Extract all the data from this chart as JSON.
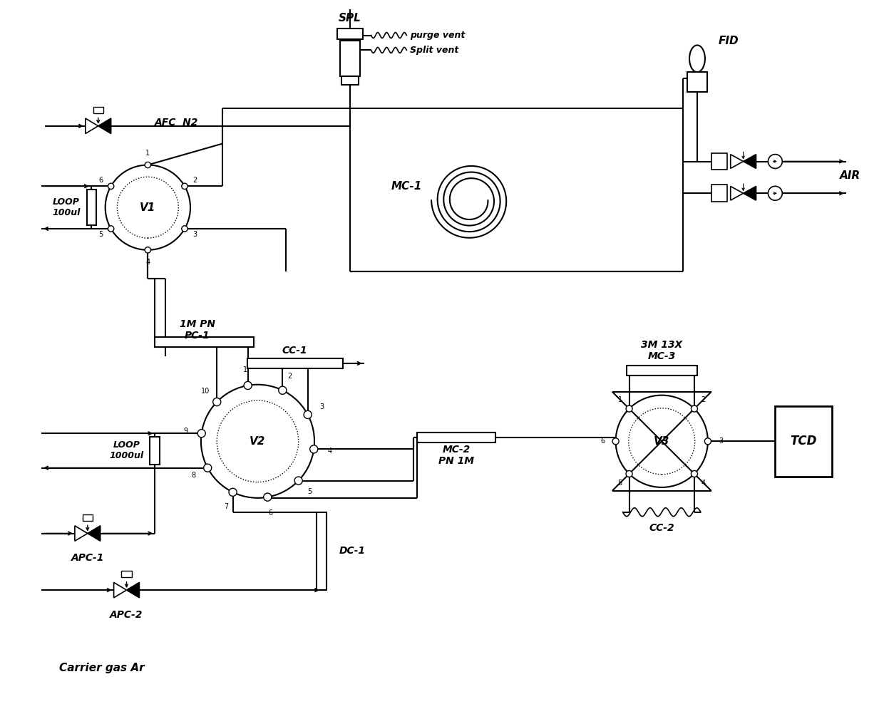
{
  "bg_color": "#ffffff",
  "fig_width": 12.4,
  "fig_height": 9.88,
  "labels": {
    "AFC_N2": "AFC  N2",
    "SPL": "SPL",
    "purge_vent": "purge vent",
    "split_vent": "Split vent",
    "MC1": "MC-1",
    "FID": "FID",
    "AIR": "AIR",
    "V1": "V1",
    "LOOP1": "LOOP\n100ul",
    "V2": "V2",
    "V3": "V3",
    "LOOP2": "LOOP\n1000ul",
    "APC1": "APC-1",
    "APC2": "APC-2",
    "CC1": "CC-1",
    "CC2": "CC-2",
    "DC1": "DC-1",
    "MC2": "MC-2\nPN 1M",
    "MC3": "3M 13X\nMC-3",
    "PC1": "1M PN\nPC-1",
    "TCD": "TCD",
    "carrier": "Carrier gas Ar"
  }
}
